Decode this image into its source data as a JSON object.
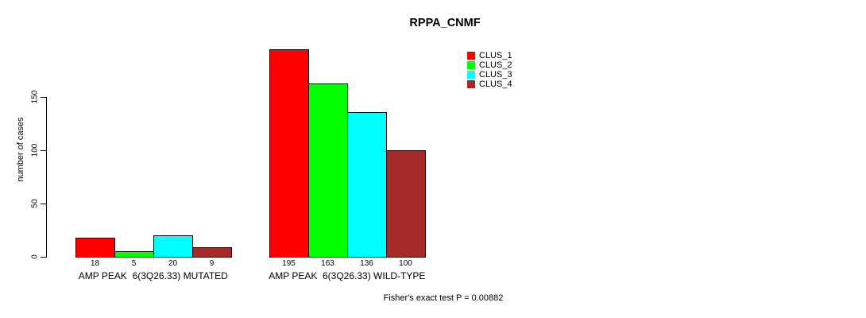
{
  "title": "RPPA_CNMF",
  "footer": "Fisher's exact test P = 0.00882",
  "chart_data": {
    "type": "bar",
    "title": "RPPA_CNMF",
    "xlabel": "",
    "ylabel": "number of cases",
    "categories": [
      "AMP PEAK  6(3Q26.33) MUTATED",
      "AMP PEAK  6(3Q26.33) WILD-TYPE"
    ],
    "series": [
      {
        "name": "CLUS_1",
        "color": "#FF0000",
        "values": [
          18,
          195
        ]
      },
      {
        "name": "CLUS_2",
        "color": "#00FF00",
        "values": [
          5,
          163
        ]
      },
      {
        "name": "CLUS_3",
        "color": "#00FFFF",
        "values": [
          20,
          136
        ]
      },
      {
        "name": "CLUS_4",
        "color": "#A52A2A",
        "values": [
          9,
          100
        ]
      }
    ],
    "value_labels_shown": true,
    "yticks": [
      0,
      50,
      100,
      150
    ],
    "ylim": [
      0,
      205
    ],
    "grid": false,
    "legend_position": "topright",
    "annotation": "Fisher's exact test P = 0.00882"
  }
}
